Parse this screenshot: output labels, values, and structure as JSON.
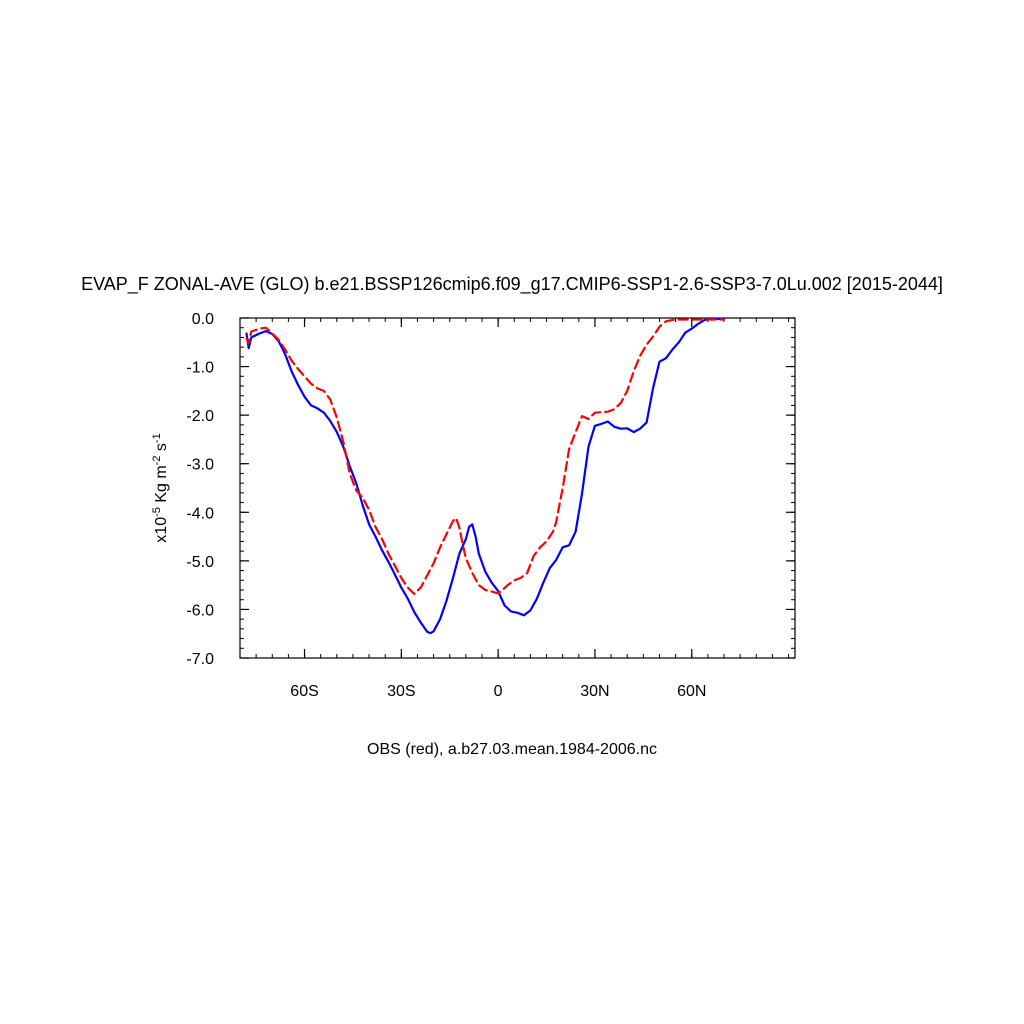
{
  "chart_data": {
    "type": "line",
    "title": "EVAP_F ZONAL-AVE (GLO) b.e21.BSSP126cmip6.f09_g17.CMIP6-SSP1-2.6-SSP3-7.0Lu.002 [2015-2044]",
    "xlabel": "OBS (red), a.b27.03.mean.1984-2006.nc",
    "ylabel": {
      "prefix": "x10",
      "exp1": "-5",
      "mid": " Kg m",
      "exp2": "-2",
      "mid2": " s",
      "exp3": "-1"
    },
    "xlim": [
      -80,
      92
    ],
    "ylim": [
      -7.0,
      0.0
    ],
    "x_ticks": [
      {
        "value": -60,
        "label": "60S"
      },
      {
        "value": -30,
        "label": "30S"
      },
      {
        "value": 0,
        "label": "0"
      },
      {
        "value": 30,
        "label": "30N"
      },
      {
        "value": 60,
        "label": "60N"
      }
    ],
    "y_ticks": [
      {
        "value": 0,
        "label": "0.0"
      },
      {
        "value": -1,
        "label": "-1.0"
      },
      {
        "value": -2,
        "label": "-2.0"
      },
      {
        "value": -3,
        "label": "-3.0"
      },
      {
        "value": -4,
        "label": "-4.0"
      },
      {
        "value": -5,
        "label": "-5.0"
      },
      {
        "value": -6,
        "label": "-6.0"
      },
      {
        "value": -7,
        "label": "-7.0"
      }
    ],
    "grid": false,
    "series": [
      {
        "color": "#0000ff",
        "style": "solid",
        "points": [
          [
            -78,
            -0.32
          ],
          [
            -77.3,
            -0.62
          ],
          [
            -76.5,
            -0.4
          ],
          [
            -74,
            -0.32
          ],
          [
            -72,
            -0.27
          ],
          [
            -70,
            -0.33
          ],
          [
            -68,
            -0.48
          ],
          [
            -66,
            -0.75
          ],
          [
            -64,
            -1.1
          ],
          [
            -62,
            -1.38
          ],
          [
            -60,
            -1.62
          ],
          [
            -58,
            -1.8
          ],
          [
            -56,
            -1.86
          ],
          [
            -54,
            -1.95
          ],
          [
            -52,
            -2.12
          ],
          [
            -50,
            -2.35
          ],
          [
            -48,
            -2.65
          ],
          [
            -46,
            -3.05
          ],
          [
            -44,
            -3.4
          ],
          [
            -42,
            -3.85
          ],
          [
            -40,
            -4.25
          ],
          [
            -38,
            -4.5
          ],
          [
            -36,
            -4.78
          ],
          [
            -34,
            -5.02
          ],
          [
            -32,
            -5.28
          ],
          [
            -30,
            -5.55
          ],
          [
            -28,
            -5.78
          ],
          [
            -26,
            -6.05
          ],
          [
            -24,
            -6.27
          ],
          [
            -22,
            -6.46
          ],
          [
            -21,
            -6.49
          ],
          [
            -20,
            -6.45
          ],
          [
            -18,
            -6.2
          ],
          [
            -16,
            -5.82
          ],
          [
            -14,
            -5.35
          ],
          [
            -12,
            -4.85
          ],
          [
            -10,
            -4.55
          ],
          [
            -9,
            -4.3
          ],
          [
            -8,
            -4.25
          ],
          [
            -7,
            -4.5
          ],
          [
            -6,
            -4.85
          ],
          [
            -4,
            -5.22
          ],
          [
            -2,
            -5.45
          ],
          [
            0,
            -5.62
          ],
          [
            2,
            -5.92
          ],
          [
            4,
            -6.04
          ],
          [
            6,
            -6.07
          ],
          [
            8,
            -6.12
          ],
          [
            10,
            -6.02
          ],
          [
            12,
            -5.78
          ],
          [
            14,
            -5.45
          ],
          [
            16,
            -5.15
          ],
          [
            18,
            -4.98
          ],
          [
            20,
            -4.72
          ],
          [
            22,
            -4.68
          ],
          [
            24,
            -4.4
          ],
          [
            26,
            -3.62
          ],
          [
            28,
            -2.65
          ],
          [
            30,
            -2.22
          ],
          [
            32,
            -2.18
          ],
          [
            34,
            -2.13
          ],
          [
            36,
            -2.24
          ],
          [
            38,
            -2.28
          ],
          [
            40,
            -2.27
          ],
          [
            42,
            -2.35
          ],
          [
            44,
            -2.28
          ],
          [
            46,
            -2.15
          ],
          [
            48,
            -1.45
          ],
          [
            50,
            -0.9
          ],
          [
            52,
            -0.83
          ],
          [
            54,
            -0.65
          ],
          [
            56,
            -0.5
          ],
          [
            58,
            -0.3
          ],
          [
            60,
            -0.22
          ],
          [
            62,
            -0.12
          ],
          [
            64,
            -0.04
          ],
          [
            66,
            -0.02
          ],
          [
            68,
            -0.02
          ],
          [
            70,
            -0.02
          ]
        ]
      },
      {
        "color": "#ff0000",
        "style": "dashed",
        "points": [
          [
            -78,
            -0.42
          ],
          [
            -77.3,
            -0.52
          ],
          [
            -76.5,
            -0.28
          ],
          [
            -74,
            -0.22
          ],
          [
            -72,
            -0.2
          ],
          [
            -70,
            -0.32
          ],
          [
            -68,
            -0.45
          ],
          [
            -66,
            -0.65
          ],
          [
            -64,
            -0.88
          ],
          [
            -62,
            -1.05
          ],
          [
            -60,
            -1.2
          ],
          [
            -58,
            -1.35
          ],
          [
            -56,
            -1.45
          ],
          [
            -54,
            -1.5
          ],
          [
            -52,
            -1.68
          ],
          [
            -50,
            -2.05
          ],
          [
            -48,
            -2.55
          ],
          [
            -46,
            -3.2
          ],
          [
            -44,
            -3.55
          ],
          [
            -42,
            -3.7
          ],
          [
            -40,
            -3.95
          ],
          [
            -38,
            -4.3
          ],
          [
            -36,
            -4.55
          ],
          [
            -34,
            -4.85
          ],
          [
            -32,
            -5.1
          ],
          [
            -30,
            -5.35
          ],
          [
            -28,
            -5.55
          ],
          [
            -26,
            -5.68
          ],
          [
            -24,
            -5.55
          ],
          [
            -22,
            -5.3
          ],
          [
            -20,
            -5.05
          ],
          [
            -18,
            -4.72
          ],
          [
            -16,
            -4.45
          ],
          [
            -14,
            -4.18
          ],
          [
            -13,
            -4.12
          ],
          [
            -12,
            -4.32
          ],
          [
            -11,
            -4.65
          ],
          [
            -10,
            -4.95
          ],
          [
            -8,
            -5.25
          ],
          [
            -6,
            -5.5
          ],
          [
            -4,
            -5.6
          ],
          [
            -2,
            -5.63
          ],
          [
            0,
            -5.67
          ],
          [
            1,
            -5.62
          ],
          [
            3,
            -5.5
          ],
          [
            5,
            -5.4
          ],
          [
            7,
            -5.35
          ],
          [
            9,
            -5.25
          ],
          [
            11,
            -4.9
          ],
          [
            13,
            -4.72
          ],
          [
            15,
            -4.6
          ],
          [
            17,
            -4.4
          ],
          [
            18,
            -4.2
          ],
          [
            20,
            -3.5
          ],
          [
            22,
            -2.7
          ],
          [
            24,
            -2.35
          ],
          [
            26,
            -2.02
          ],
          [
            28,
            -2.08
          ],
          [
            30,
            -1.95
          ],
          [
            32,
            -1.94
          ],
          [
            34,
            -1.93
          ],
          [
            36,
            -1.88
          ],
          [
            38,
            -1.75
          ],
          [
            40,
            -1.5
          ],
          [
            42,
            -1.1
          ],
          [
            44,
            -0.78
          ],
          [
            46,
            -0.55
          ],
          [
            48,
            -0.38
          ],
          [
            50,
            -0.18
          ],
          [
            52,
            -0.07
          ],
          [
            54,
            -0.04
          ],
          [
            56,
            -0.03
          ],
          [
            58,
            -0.03
          ],
          [
            70,
            -0.03
          ]
        ]
      }
    ]
  }
}
